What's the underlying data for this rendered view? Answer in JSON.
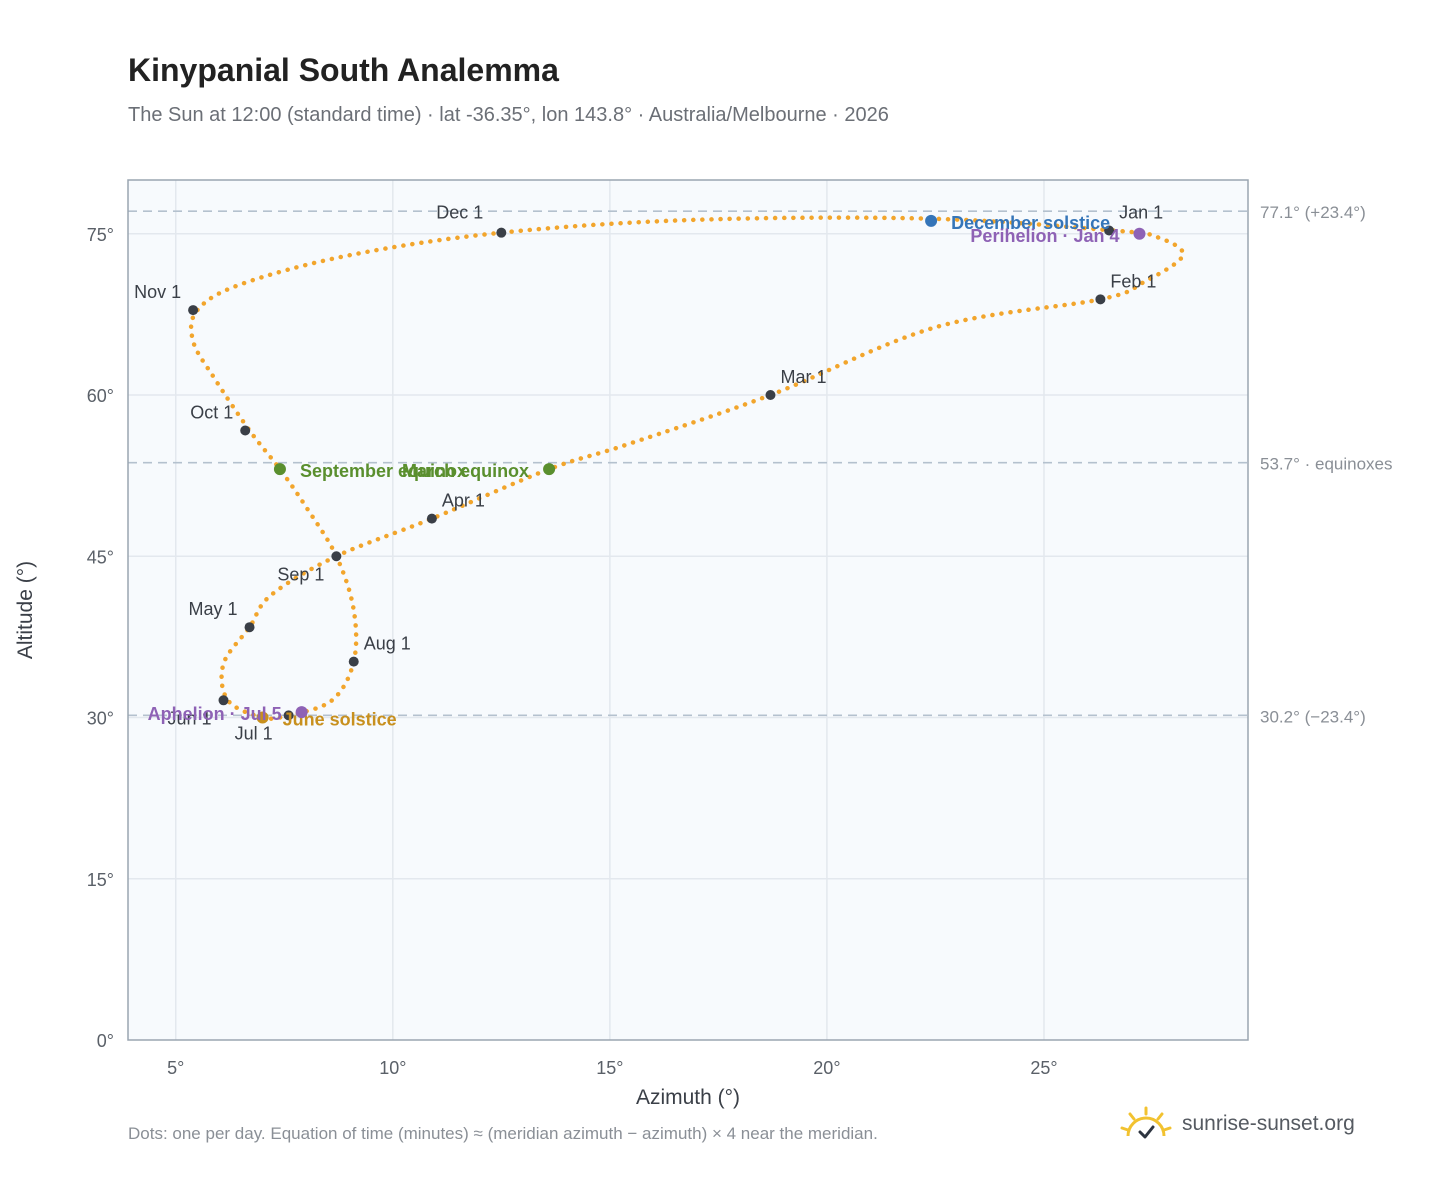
{
  "title": "Kinypanial South Analemma",
  "subtitle": "The Sun at 12:00 (standard time) · lat -36.35°, lon 143.8° · Australia/Melbourne · 2026",
  "footnote": "Dots: one per day. Equation of time (minutes) ≈ (meridian azimuth − azimuth) × 4 near the meridian.",
  "brand": {
    "name": "sunrise-sunset.org",
    "icon": "sun-logo-icon"
  },
  "colors": {
    "path": "#f2a52c",
    "month": "#3a3f47",
    "equinox": "#5a8f2e",
    "december_solstice": "#3575b8",
    "june_solstice": "#c8901e",
    "perihelion": "#8e62b5",
    "reference_line": "#b4c1ce",
    "plot_bg": "#f7fafd",
    "grid": "#e3e8ee"
  },
  "chart_data": {
    "type": "scatter",
    "xlabel": "Azimuth (°)",
    "ylabel": "Altitude (°)",
    "xlim": [
      3.9,
      29.7
    ],
    "ylim": [
      0,
      80
    ],
    "xticks": [
      5,
      10,
      15,
      20,
      25
    ],
    "yticks": [
      0,
      15,
      30,
      45,
      60,
      75
    ],
    "xtick_labels": [
      "5°",
      "10°",
      "15°",
      "20°",
      "25°"
    ],
    "ytick_labels": [
      "0°",
      "15°",
      "30°",
      "45°",
      "60°",
      "75°"
    ],
    "grid": true,
    "reference_lines": [
      {
        "y": 77.1,
        "label": "77.1° (+23.4°)"
      },
      {
        "y": 53.7,
        "label": "53.7° · equinoxes"
      },
      {
        "y": 30.2,
        "label": "30.2° (−23.4°)"
      }
    ],
    "path_series": {
      "description_points": "Daily sun positions traced by the analemma (azimuth, altitude)",
      "points": [
        [
          26.6,
          75.3
        ],
        [
          27.6,
          74.7
        ],
        [
          28.2,
          73.0
        ],
        [
          27.3,
          70.5
        ],
        [
          26.3,
          68.9
        ],
        [
          22.5,
          66.3
        ],
        [
          18.7,
          60.0
        ],
        [
          15.4,
          55.4
        ],
        [
          13.6,
          53.1
        ],
        [
          10.9,
          48.5
        ],
        [
          8.7,
          45.0
        ],
        [
          7.2,
          41.4
        ],
        [
          6.7,
          38.4
        ],
        [
          6.1,
          35.0
        ],
        [
          6.2,
          31.6
        ],
        [
          7.0,
          30.0
        ],
        [
          7.6,
          30.2
        ],
        [
          8.6,
          31.6
        ],
        [
          9.1,
          35.2
        ],
        [
          9.1,
          40.0
        ],
        [
          8.7,
          45.0
        ],
        [
          8.0,
          49.6
        ],
        [
          7.4,
          53.1
        ],
        [
          6.7,
          56.7
        ],
        [
          5.9,
          61.5
        ],
        [
          5.4,
          65.0
        ],
        [
          5.5,
          67.9
        ],
        [
          6.5,
          70.3
        ],
        [
          9.0,
          73.0
        ],
        [
          12.5,
          75.1
        ],
        [
          17.0,
          76.3
        ],
        [
          22.4,
          76.4
        ],
        [
          26.6,
          75.3
        ]
      ]
    },
    "month_markers": [
      {
        "label": "Jan 1",
        "x": 26.5,
        "y": 75.3
      },
      {
        "label": "Feb 1",
        "x": 26.3,
        "y": 68.9
      },
      {
        "label": "Mar 1",
        "x": 18.7,
        "y": 60.0
      },
      {
        "label": "Apr 1",
        "x": 10.9,
        "y": 48.5
      },
      {
        "label": "May 1",
        "x": 6.7,
        "y": 38.4
      },
      {
        "label": "Jun 1",
        "x": 6.1,
        "y": 31.6
      },
      {
        "label": "Jul 1",
        "x": 7.6,
        "y": 30.2
      },
      {
        "label": "Aug 1",
        "x": 9.1,
        "y": 35.2
      },
      {
        "label": "Sep 1",
        "x": 8.7,
        "y": 45.0
      },
      {
        "label": "Oct 1",
        "x": 6.6,
        "y": 56.7
      },
      {
        "label": "Nov 1",
        "x": 5.4,
        "y": 67.9
      },
      {
        "label": "Dec 1",
        "x": 12.5,
        "y": 75.1
      }
    ],
    "events": [
      {
        "label": "December solstice",
        "x": 22.4,
        "y": 76.2,
        "kind": "december_solstice"
      },
      {
        "label": "Perihelion · Jan 4",
        "x": 27.2,
        "y": 75.0,
        "kind": "perihelion"
      },
      {
        "label": "March equinox",
        "x": 13.6,
        "y": 53.1,
        "kind": "equinox"
      },
      {
        "label": "September equinox",
        "x": 7.4,
        "y": 53.1,
        "kind": "equinox"
      },
      {
        "label": "June solstice",
        "x": 7.0,
        "y": 30.0,
        "kind": "june_solstice"
      },
      {
        "label": "Aphelion · Jul 5",
        "x": 7.9,
        "y": 30.5,
        "kind": "perihelion"
      }
    ]
  }
}
